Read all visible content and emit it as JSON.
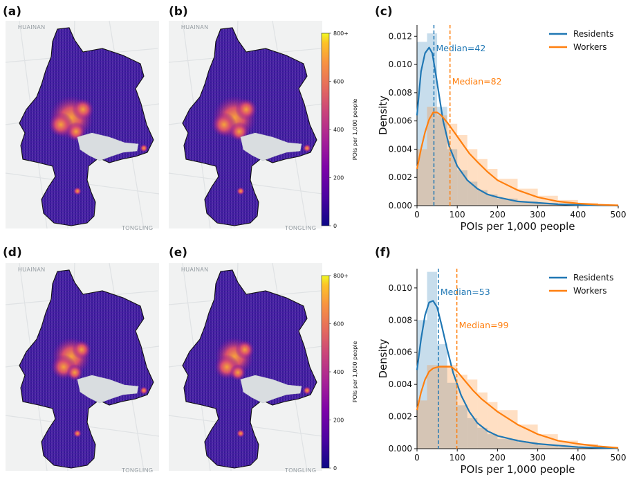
{
  "figure": {
    "panel_labels": [
      "(a)",
      "(b)",
      "(c)",
      "(d)",
      "(e)",
      "(f)"
    ],
    "colors": {
      "residents": "#1f77b4",
      "workers": "#ff7f0e",
      "water": "#d9dde0",
      "map_bg": "#f1f2f2"
    }
  },
  "maps": [
    {
      "panel": "(a)",
      "city_top": "HUAINAN",
      "city_bottom": "TONGLING"
    },
    {
      "panel": "(b)",
      "city_top": "HUAINAN",
      "city_bottom": "TONGLING"
    },
    {
      "panel": "(d)",
      "city_top": "HUAINAN",
      "city_bottom": "TONGLING"
    },
    {
      "panel": "(e)",
      "city_top": "HUAINAN",
      "city_bottom": "TONGLING"
    }
  ],
  "colorbars": [
    {
      "label": "POIs per 1,000 people",
      "ticks": [
        "0",
        "200",
        "400",
        "600",
        "800+"
      ],
      "colormap": "plasma"
    },
    {
      "label": "POIs per 1,000 people",
      "ticks": [
        "0",
        "200",
        "400",
        "600",
        "800+"
      ],
      "colormap": "plasma"
    }
  ],
  "chart_data": [
    {
      "panel": "(c)",
      "type": "area",
      "xlabel": "POIs per 1,000 people",
      "ylabel": "Density",
      "xlim": [
        0,
        500
      ],
      "ylim": [
        0,
        0.0128
      ],
      "xticks": [
        0,
        100,
        200,
        300,
        400,
        500
      ],
      "yticks": [
        0.0,
        0.002,
        0.004,
        0.006,
        0.008,
        0.01,
        0.012
      ],
      "ytick_labels": [
        "0.000",
        "0.002",
        "0.004",
        "0.006",
        "0.008",
        "0.010",
        "0.012"
      ],
      "legend_position": "top-right",
      "series": [
        {
          "name": "Residents",
          "median": 42,
          "median_label": "Median=42",
          "kde_x": [
            0,
            10,
            20,
            30,
            38,
            45,
            55,
            65,
            80,
            100,
            125,
            150,
            175,
            200,
            250,
            300,
            350,
            400,
            450,
            500
          ],
          "kde_y": [
            0.0064,
            0.0095,
            0.0108,
            0.0112,
            0.0108,
            0.0096,
            0.0078,
            0.006,
            0.0042,
            0.0028,
            0.0018,
            0.0012,
            0.0008,
            0.0006,
            0.0003,
            0.0002,
            0.0001,
            5e-05,
            2e-05,
            0.0
          ],
          "hist_edges": [
            0,
            25,
            50,
            75,
            100,
            125,
            150,
            175,
            200,
            250,
            300,
            350,
            400,
            450,
            500
          ],
          "hist_values": [
            0.0116,
            0.0122,
            0.007,
            0.004,
            0.0025,
            0.0017,
            0.0011,
            0.0008,
            0.0005,
            0.0003,
            0.0002,
            0.0001,
            6e-05,
            3e-05
          ]
        },
        {
          "name": "Workers",
          "median": 82,
          "median_label": "Median=82",
          "kde_x": [
            0,
            10,
            20,
            30,
            40,
            50,
            60,
            75,
            90,
            110,
            130,
            150,
            175,
            200,
            250,
            300,
            350,
            400,
            450,
            500
          ],
          "kde_y": [
            0.0026,
            0.004,
            0.0052,
            0.0061,
            0.0066,
            0.0066,
            0.0064,
            0.0059,
            0.0053,
            0.0045,
            0.0037,
            0.0031,
            0.0024,
            0.0018,
            0.0011,
            0.0006,
            0.0003,
            0.00015,
            7e-05,
            2e-05
          ],
          "hist_edges": [
            0,
            25,
            50,
            75,
            100,
            125,
            150,
            175,
            200,
            250,
            300,
            350,
            400,
            450,
            500
          ],
          "hist_values": [
            0.004,
            0.007,
            0.0064,
            0.0058,
            0.005,
            0.004,
            0.0033,
            0.0026,
            0.0019,
            0.0012,
            0.0007,
            0.0004,
            0.0002,
            0.0001
          ]
        }
      ]
    },
    {
      "panel": "(f)",
      "type": "area",
      "xlabel": "POIs per 1,000 people",
      "ylabel": "Density",
      "xlim": [
        0,
        500
      ],
      "ylim": [
        0,
        0.0112
      ],
      "xticks": [
        0,
        100,
        200,
        300,
        400,
        500
      ],
      "yticks": [
        0.0,
        0.002,
        0.004,
        0.006,
        0.008,
        0.01
      ],
      "ytick_labels": [
        "0.000",
        "0.002",
        "0.004",
        "0.006",
        "0.008",
        "0.010"
      ],
      "legend_position": "top-right",
      "series": [
        {
          "name": "Residents",
          "median": 53,
          "median_label": "Median=53",
          "kde_x": [
            0,
            10,
            20,
            30,
            40,
            50,
            60,
            75,
            90,
            110,
            130,
            150,
            175,
            200,
            250,
            300,
            350,
            400,
            450,
            500
          ],
          "kde_y": [
            0.0049,
            0.0068,
            0.0083,
            0.0091,
            0.0092,
            0.0088,
            0.0078,
            0.0062,
            0.0047,
            0.0033,
            0.0023,
            0.0016,
            0.0011,
            0.0008,
            0.0005,
            0.0003,
            0.0002,
            0.0001,
            5e-05,
            2e-05
          ],
          "hist_edges": [
            0,
            25,
            50,
            75,
            100,
            125,
            150,
            175,
            200,
            250,
            300,
            350,
            400,
            450,
            500
          ],
          "hist_values": [
            0.008,
            0.011,
            0.0065,
            0.0041,
            0.0027,
            0.0019,
            0.0013,
            0.0009,
            0.0006,
            0.0004,
            0.0002,
            0.0001,
            6e-05,
            3e-05
          ]
        },
        {
          "name": "Workers",
          "median": 99,
          "median_label": "Median=99",
          "kde_x": [
            0,
            10,
            20,
            30,
            40,
            55,
            70,
            85,
            100,
            120,
            140,
            160,
            180,
            200,
            250,
            300,
            350,
            400,
            450,
            500
          ],
          "kde_y": [
            0.0024,
            0.0035,
            0.0043,
            0.0048,
            0.005,
            0.0051,
            0.0051,
            0.0051,
            0.0048,
            0.0042,
            0.0036,
            0.0031,
            0.0027,
            0.0023,
            0.0015,
            0.0009,
            0.0005,
            0.0003,
            0.00015,
            5e-05
          ],
          "hist_edges": [
            0,
            25,
            50,
            75,
            100,
            125,
            150,
            175,
            200,
            250,
            300,
            350,
            400,
            450,
            500
          ],
          "hist_values": [
            0.003,
            0.0052,
            0.0052,
            0.0052,
            0.0046,
            0.0043,
            0.0035,
            0.0029,
            0.0024,
            0.0015,
            0.0009,
            0.0005,
            0.0003,
            0.0001
          ]
        }
      ]
    }
  ]
}
